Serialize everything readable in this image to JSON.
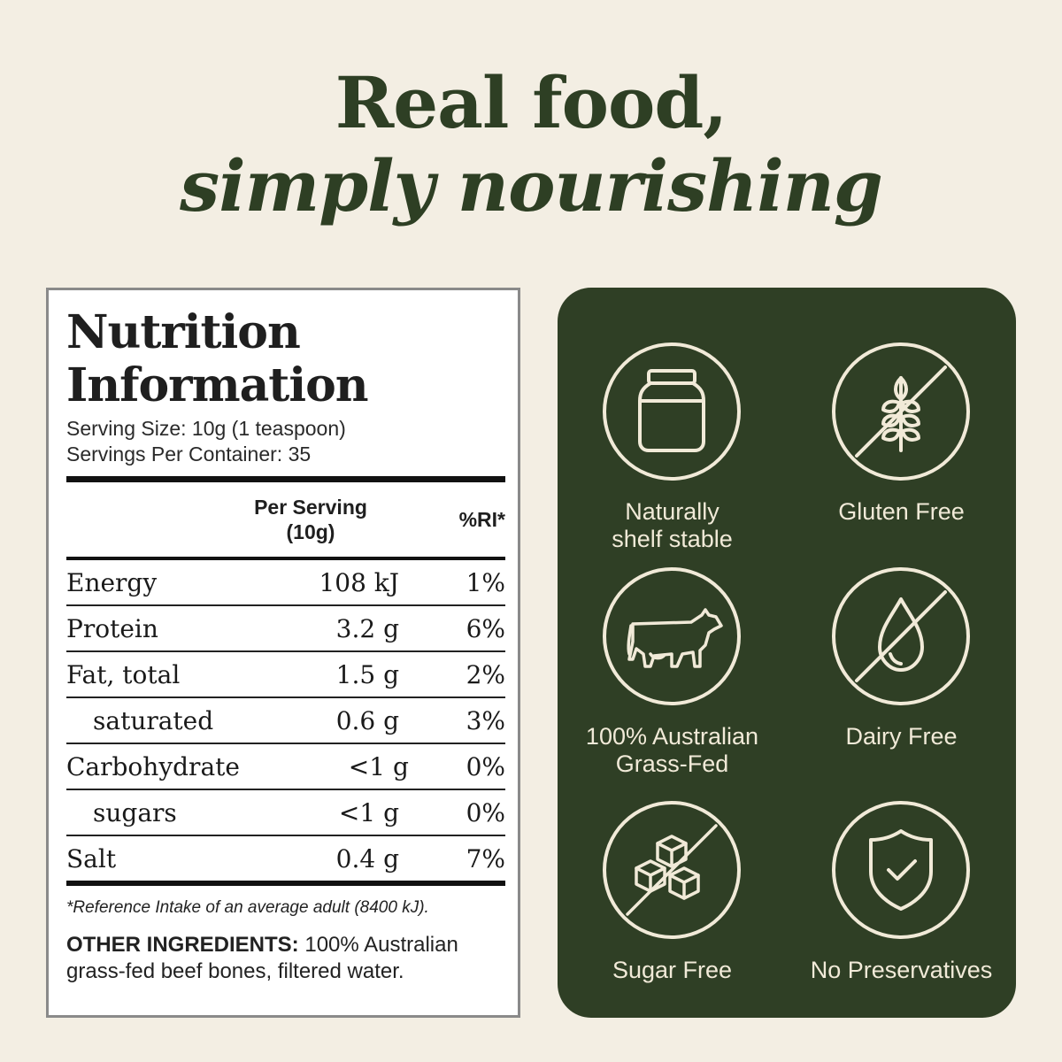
{
  "headline": {
    "line1": "Real food,",
    "line2": "simply nourishing"
  },
  "nutrition": {
    "title_line1": "Nutrition",
    "title_line2": "Information",
    "serving_size": "Serving Size: 10g (1 teaspoon)",
    "servings_per_container": "Servings Per Container: 35",
    "col_per_serving_line1": "Per Serving",
    "col_per_serving_line2": "(10g)",
    "col_ri": "%RI*",
    "rows": [
      {
        "name": "Energy",
        "per_serving": "108 kJ",
        "ri": "1%"
      },
      {
        "name": "Protein",
        "per_serving": "3.2 g",
        "ri": "6%"
      },
      {
        "name": "Fat, total",
        "per_serving": "1.5 g",
        "ri": "2%"
      },
      {
        "name": "saturated",
        "per_serving": "0.6 g",
        "ri": "3%"
      },
      {
        "name": "Carbohydrate",
        "per_serving": "<1 g",
        "ri": "0%"
      },
      {
        "name": "sugars",
        "per_serving": "<1 g",
        "ri": "0%"
      },
      {
        "name": "Salt",
        "per_serving": "0.4 g",
        "ri": "7%"
      }
    ],
    "footnote": "*Reference Intake of an average adult (8400 kJ).",
    "ingredients_label": "OTHER INGREDIENTS:",
    "ingredients_text": " 100% Australian grass-fed beef bones, filtered water."
  },
  "features": [
    {
      "icon": "jar-icon",
      "label_line1": "Naturally",
      "label_line2": "shelf stable"
    },
    {
      "icon": "no-wheat-icon",
      "label_line1": "Gluten Free",
      "label_line2": ""
    },
    {
      "icon": "cow-icon",
      "label_line1": "100% Australian",
      "label_line2": "Grass-Fed"
    },
    {
      "icon": "no-milk-drop-icon",
      "label_line1": "Dairy Free",
      "label_line2": ""
    },
    {
      "icon": "no-sugar-cubes-icon",
      "label_line1": "Sugar Free",
      "label_line2": ""
    },
    {
      "icon": "shield-check-icon",
      "label_line1": "No Preservatives",
      "label_line2": ""
    }
  ],
  "colors": {
    "background": "#f3eee3",
    "headline": "#2e3f24",
    "panel_green": "#2f3f25",
    "icon_cream": "#f1ead8"
  }
}
